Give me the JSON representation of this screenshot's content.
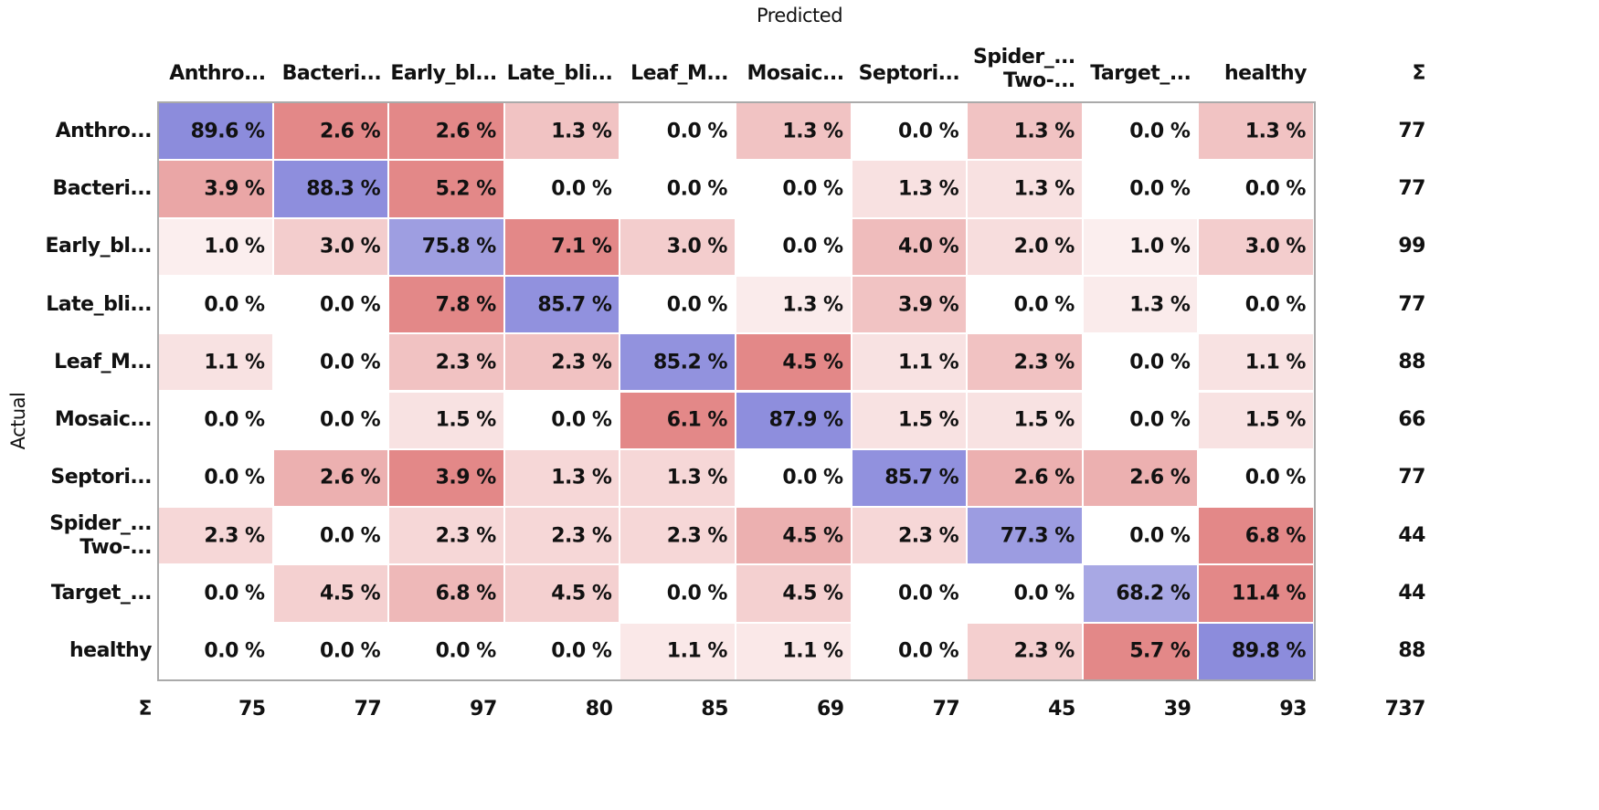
{
  "chart_data": {
    "type": "heatmap",
    "x_label": "Predicted",
    "y_label": "Actual",
    "sum_label": "Σ",
    "categories": [
      "Anthro...",
      "Bacteri...",
      "Early_bl...",
      "Late_bli...",
      "Leaf_M...",
      "Mosaic...",
      "Septori...",
      "Spider_...\nTwo-...",
      "Target_...",
      "healthy"
    ],
    "values": [
      [
        89.6,
        2.6,
        2.6,
        1.3,
        0.0,
        1.3,
        0.0,
        1.3,
        0.0,
        1.3
      ],
      [
        3.9,
        88.3,
        5.2,
        0.0,
        0.0,
        0.0,
        1.3,
        1.3,
        0.0,
        0.0
      ],
      [
        1.0,
        3.0,
        75.8,
        7.1,
        3.0,
        0.0,
        4.0,
        2.0,
        1.0,
        3.0
      ],
      [
        0.0,
        0.0,
        7.8,
        85.7,
        0.0,
        1.3,
        3.9,
        0.0,
        1.3,
        0.0
      ],
      [
        1.1,
        0.0,
        2.3,
        2.3,
        85.2,
        4.5,
        1.1,
        2.3,
        0.0,
        1.1
      ],
      [
        0.0,
        0.0,
        1.5,
        0.0,
        6.1,
        87.9,
        1.5,
        1.5,
        0.0,
        1.5
      ],
      [
        0.0,
        2.6,
        3.9,
        1.3,
        1.3,
        0.0,
        85.7,
        2.6,
        2.6,
        0.0
      ],
      [
        2.3,
        0.0,
        2.3,
        2.3,
        2.3,
        4.5,
        2.3,
        77.3,
        0.0,
        6.8
      ],
      [
        0.0,
        4.5,
        6.8,
        4.5,
        0.0,
        4.5,
        0.0,
        0.0,
        68.2,
        11.4
      ],
      [
        0.0,
        0.0,
        0.0,
        0.0,
        1.1,
        1.1,
        0.0,
        2.3,
        5.7,
        89.8
      ]
    ],
    "value_labels": [
      [
        "89.6 %",
        "2.6 %",
        "2.6 %",
        "1.3 %",
        "0.0 %",
        "1.3 %",
        "0.0 %",
        "1.3 %",
        "0.0 %",
        "1.3 %"
      ],
      [
        "3.9 %",
        "88.3 %",
        "5.2 %",
        "0.0 %",
        "0.0 %",
        "0.0 %",
        "1.3 %",
        "1.3 %",
        "0.0 %",
        "0.0 %"
      ],
      [
        "1.0 %",
        "3.0 %",
        "75.8 %",
        "7.1 %",
        "3.0 %",
        "0.0 %",
        "4.0 %",
        "2.0 %",
        "1.0 %",
        "3.0 %"
      ],
      [
        "0.0 %",
        "0.0 %",
        "7.8 %",
        "85.7 %",
        "0.0 %",
        "1.3 %",
        "3.9 %",
        "0.0 %",
        "1.3 %",
        "0.0 %"
      ],
      [
        "1.1 %",
        "0.0 %",
        "2.3 %",
        "2.3 %",
        "85.2 %",
        "4.5 %",
        "1.1 %",
        "2.3 %",
        "0.0 %",
        "1.1 %"
      ],
      [
        "0.0 %",
        "0.0 %",
        "1.5 %",
        "0.0 %",
        "6.1 %",
        "87.9 %",
        "1.5 %",
        "1.5 %",
        "0.0 %",
        "1.5 %"
      ],
      [
        "0.0 %",
        "2.6 %",
        "3.9 %",
        "1.3 %",
        "1.3 %",
        "0.0 %",
        "85.7 %",
        "2.6 %",
        "2.6 %",
        "0.0 %"
      ],
      [
        "2.3 %",
        "0.0 %",
        "2.3 %",
        "2.3 %",
        "2.3 %",
        "4.5 %",
        "2.3 %",
        "77.3 %",
        "0.0 %",
        "6.8 %"
      ],
      [
        "0.0 %",
        "4.5 %",
        "6.8 %",
        "4.5 %",
        "0.0 %",
        "4.5 %",
        "0.0 %",
        "0.0 %",
        "68.2 %",
        "11.4 %"
      ],
      [
        "0.0 %",
        "0.0 %",
        "0.0 %",
        "0.0 %",
        "1.1 %",
        "1.1 %",
        "0.0 %",
        "2.3 %",
        "5.7 %",
        "89.8 %"
      ]
    ],
    "row_sums": [
      77,
      77,
      99,
      77,
      88,
      66,
      77,
      44,
      44,
      88
    ],
    "column_sums": [
      75,
      77,
      97,
      80,
      85,
      69,
      77,
      45,
      39,
      93
    ],
    "total": 737,
    "diagonal_color": "#7f7fd8",
    "off_diagonal_color": "#dc6a6a"
  }
}
